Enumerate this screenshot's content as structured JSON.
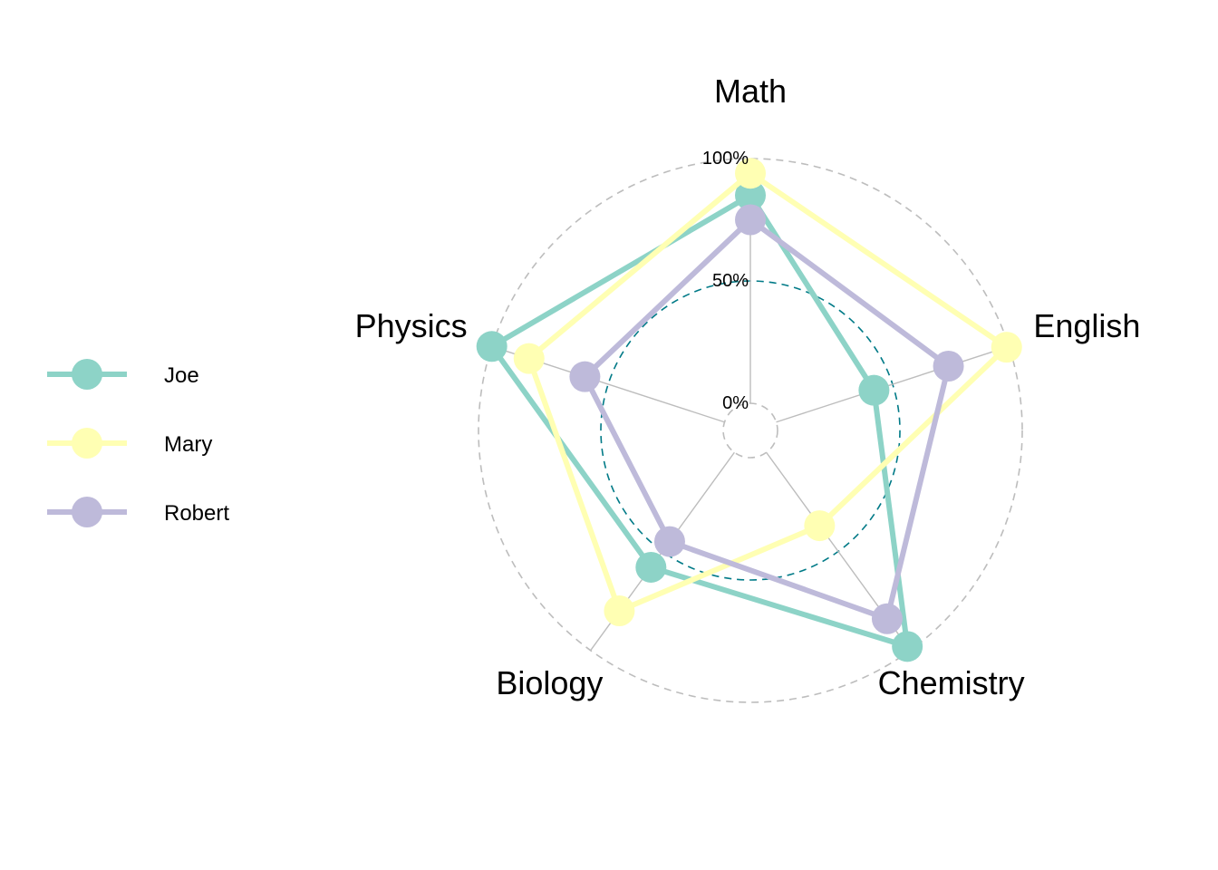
{
  "chart_data": {
    "type": "radar",
    "axes": [
      "Math",
      "English",
      "Chemistry",
      "Biology",
      "Physics"
    ],
    "grid_labels": [
      "0%",
      "50%",
      "100%"
    ],
    "grid_values": [
      0,
      0.5,
      1.0
    ],
    "value_range": [
      0,
      1
    ],
    "series": [
      {
        "name": "Joe",
        "color": "#8DD3C7",
        "values": [
          0.85,
          0.42,
          0.98,
          0.58,
          1.0
        ]
      },
      {
        "name": "Mary",
        "color": "#FFFFB3",
        "values": [
          0.94,
          0.99,
          0.37,
          0.8,
          0.84
        ]
      },
      {
        "name": "Robert",
        "color": "#BEBADA",
        "values": [
          0.75,
          0.74,
          0.84,
          0.45,
          0.6
        ]
      }
    ],
    "legend_position": "left",
    "outer_grid_color": "#BDBDBD",
    "mid_grid_color": "#007A87",
    "spoke_color": "#BDBDBD"
  }
}
